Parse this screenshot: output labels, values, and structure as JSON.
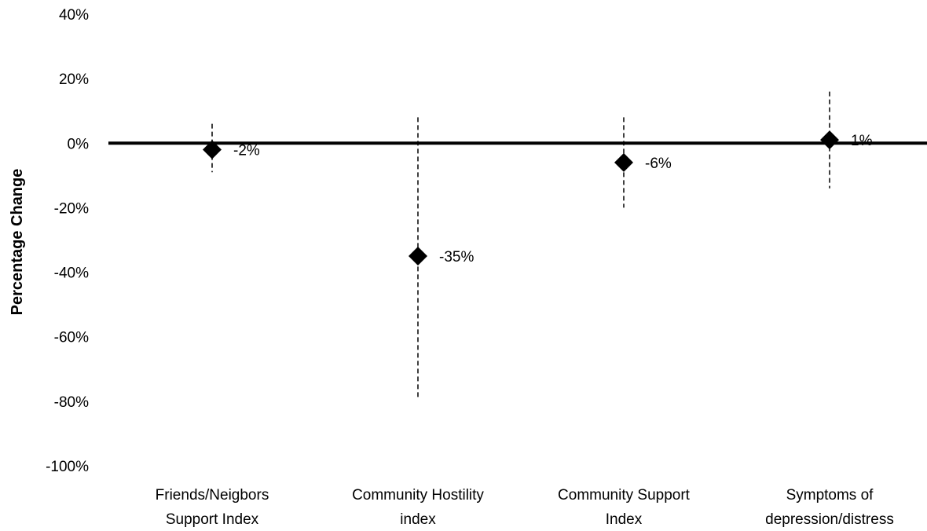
{
  "chart_data": {
    "type": "scatter",
    "title": "",
    "xlabel": "",
    "ylabel": "Percentage Change",
    "ylim": [
      -100,
      40
    ],
    "yticks": [
      40,
      20,
      0,
      -20,
      -40,
      -60,
      -80,
      -100
    ],
    "ytick_labels": [
      "40%",
      "20%",
      "0%",
      "-20%",
      "-40%",
      "-60%",
      "-80%",
      "-100%"
    ],
    "categories": [
      [
        "Friends/Neigbors",
        "Support Index"
      ],
      [
        "Community Hostility",
        "index"
      ],
      [
        "Community Support",
        "Index"
      ],
      [
        "Symptoms of",
        "depression/distress"
      ]
    ],
    "values": [
      -2,
      -35,
      -6,
      1
    ],
    "error_low": [
      -9,
      -79,
      -20,
      -14
    ],
    "error_high": [
      6,
      8,
      8,
      16
    ],
    "data_labels": [
      "-2%",
      "-35%",
      "-6%",
      "1%"
    ],
    "marker": "diamond",
    "marker_color": "#000000",
    "error_style": "dashed",
    "zero_line": true,
    "grid": false,
    "legend": "none"
  }
}
